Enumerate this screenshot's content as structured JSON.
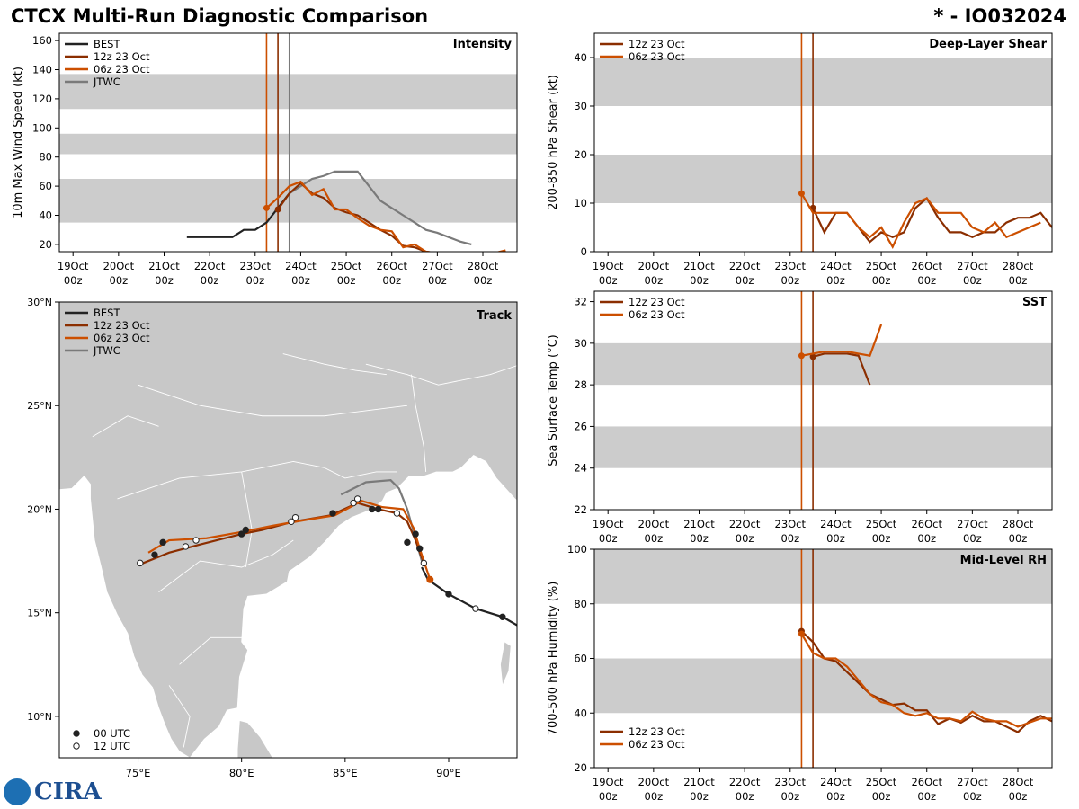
{
  "header": {
    "title": "CTCX Multi-Run Diagnostic Comparison",
    "storm_id": "* - IO032024"
  },
  "logo": {
    "text": "CIRA",
    "noaa": "NOAA"
  },
  "colors": {
    "BEST": "#222222",
    "12z 23 Oct": "#8b2e00",
    "06z 23 Oct": "#cc4f00",
    "JTWC": "#7a7a7a",
    "band": "#cccccc"
  },
  "time_labels": [
    "19Oct\n00z",
    "20Oct\n00z",
    "21Oct\n00z",
    "22Oct\n00z",
    "23Oct\n00z",
    "24Oct\n00z",
    "25Oct\n00z",
    "26Oct\n00z",
    "27Oct\n00z",
    "28Oct\n00z"
  ],
  "chart_data": [
    {
      "id": "intensity",
      "type": "line",
      "title": "Intensity",
      "ylabel": "10m Max Wind Speed (kt)",
      "xlim": [
        -0.3,
        9.75
      ],
      "ylim": [
        15,
        165
      ],
      "yticks": [
        20,
        40,
        60,
        80,
        100,
        120,
        140,
        160
      ],
      "bands": [
        [
          35,
          65
        ],
        [
          82,
          96
        ],
        [
          113,
          137
        ]
      ],
      "vlines": [
        {
          "x": 4.25,
          "series": "06z 23 Oct"
        },
        {
          "x": 4.5,
          "series": "12z 23 Oct"
        },
        {
          "x": 4.75,
          "series": "JTWC"
        }
      ],
      "legend": [
        "BEST",
        "12z 23 Oct",
        "06z 23 Oct",
        "JTWC"
      ],
      "series": [
        {
          "name": "BEST",
          "x": [
            2.5,
            2.75,
            3.0,
            3.25,
            3.5,
            3.75,
            4.0,
            4.25,
            4.5,
            4.75
          ],
          "y": [
            25,
            25,
            25,
            25,
            25,
            30,
            30,
            35,
            45,
            55
          ]
        },
        {
          "name": "JTWC",
          "x": [
            4.75,
            5.0,
            5.25,
            5.5,
            5.75,
            6.0,
            6.25,
            6.5,
            6.75,
            7.0,
            7.25,
            7.5,
            7.75,
            8.0,
            8.25,
            8.5,
            8.75
          ],
          "y": [
            55,
            60,
            65,
            67,
            70,
            70,
            70,
            60,
            50,
            45,
            40,
            35,
            30,
            28,
            25,
            22,
            20
          ]
        },
        {
          "name": "12z 23 Oct",
          "x": [
            4.5,
            4.75,
            5.0,
            5.25,
            5.5,
            5.75,
            6.0,
            6.25,
            6.5,
            6.75,
            7.0,
            7.25,
            7.5,
            7.75,
            8.0,
            8.25,
            8.5,
            8.75,
            9.0,
            9.25,
            9.5
          ],
          "y": [
            44,
            55,
            62,
            55,
            52,
            45,
            42,
            40,
            35,
            30,
            26,
            19,
            18,
            15,
            14,
            13,
            12,
            12,
            12,
            12,
            12
          ]
        },
        {
          "name": "06z 23 Oct",
          "x": [
            4.25,
            4.5,
            4.75,
            5.0,
            5.25,
            5.5,
            5.75,
            6.0,
            6.25,
            6.5,
            6.75,
            7.0,
            7.25,
            7.5,
            7.75,
            8.0,
            8.25,
            8.5,
            8.75,
            9.0,
            9.25,
            9.5
          ],
          "y": [
            45,
            52,
            60,
            63,
            54,
            58,
            44,
            44,
            38,
            33,
            30,
            29,
            18,
            20,
            15,
            14,
            13,
            12,
            12,
            13,
            14,
            16
          ]
        }
      ]
    },
    {
      "id": "shear",
      "type": "line",
      "title": "Deep-Layer Shear",
      "ylabel": "200-850 hPa Shear (kt)",
      "xlim": [
        -0.3,
        9.75
      ],
      "ylim": [
        0,
        45
      ],
      "yticks": [
        0,
        10,
        20,
        30,
        40
      ],
      "bands": [
        [
          10,
          20
        ],
        [
          30,
          40
        ]
      ],
      "vlines": [
        {
          "x": 4.25,
          "series": "06z 23 Oct"
        },
        {
          "x": 4.5,
          "series": "12z 23 Oct"
        }
      ],
      "legend": [
        "12z 23 Oct",
        "06z 23 Oct"
      ],
      "series": [
        {
          "name": "12z 23 Oct",
          "x": [
            4.5,
            4.75,
            5.0,
            5.25,
            5.5,
            5.75,
            6.0,
            6.25,
            6.5,
            6.75,
            7.0,
            7.25,
            7.5,
            7.75,
            8.0,
            8.25,
            8.5,
            8.75,
            9.0,
            9.25,
            9.5,
            9.75
          ],
          "y": [
            9,
            4,
            8,
            8,
            5,
            2,
            4,
            3,
            4,
            9,
            11,
            7,
            4,
            4,
            3,
            4,
            4,
            6,
            7,
            7,
            8,
            5
          ]
        },
        {
          "name": "06z 23 Oct",
          "x": [
            4.25,
            4.5,
            4.75,
            5.0,
            5.25,
            5.5,
            5.75,
            6.0,
            6.25,
            6.5,
            6.75,
            7.0,
            7.25,
            7.5,
            7.75,
            8.0,
            8.25,
            8.5,
            8.75,
            9.0,
            9.25,
            9.5
          ],
          "y": [
            12,
            8,
            8,
            8,
            8,
            5,
            3,
            5,
            1,
            6,
            10,
            11,
            8,
            8,
            8,
            5,
            4,
            6,
            3,
            4,
            5,
            6
          ]
        }
      ]
    },
    {
      "id": "sst",
      "type": "line",
      "title": "SST",
      "ylabel": "Sea Surface Temp (°C)",
      "xlim": [
        -0.3,
        9.75
      ],
      "ylim": [
        22,
        32.5
      ],
      "yticks": [
        22,
        24,
        26,
        28,
        30,
        32
      ],
      "bands": [
        [
          24,
          26
        ],
        [
          28,
          30
        ]
      ],
      "vlines": [
        {
          "x": 4.25,
          "series": "06z 23 Oct"
        },
        {
          "x": 4.5,
          "series": "12z 23 Oct"
        }
      ],
      "legend": [
        "12z 23 Oct",
        "06z 23 Oct"
      ],
      "series": [
        {
          "name": "12z 23 Oct",
          "x": [
            4.5,
            4.75,
            5.0,
            5.25,
            5.5,
            5.75
          ],
          "y": [
            29.35,
            29.5,
            29.5,
            29.5,
            29.4,
            28.0
          ]
        },
        {
          "name": "06z 23 Oct",
          "x": [
            4.25,
            4.5,
            4.75,
            5.0,
            5.25,
            5.5,
            5.75,
            6.0
          ],
          "y": [
            29.4,
            29.5,
            29.6,
            29.6,
            29.6,
            29.5,
            29.4,
            30.9
          ]
        }
      ]
    },
    {
      "id": "rh",
      "type": "line",
      "title": "Mid-Level RH",
      "ylabel": "700-500 hPa Humidity (%)",
      "xlim": [
        -0.3,
        9.75
      ],
      "ylim": [
        20,
        100
      ],
      "yticks": [
        20,
        40,
        60,
        80,
        100
      ],
      "bands": [
        [
          40,
          60
        ],
        [
          80,
          100
        ]
      ],
      "vlines": [
        {
          "x": 4.25,
          "series": "06z 23 Oct"
        },
        {
          "x": 4.5,
          "series": "12z 23 Oct"
        }
      ],
      "legend": [
        "12z 23 Oct",
        "06z 23 Oct"
      ],
      "series": [
        {
          "name": "12z 23 Oct",
          "x": [
            4.25,
            4.5,
            4.75,
            5.0,
            5.25,
            5.5,
            5.75,
            6.0,
            6.25,
            6.5,
            6.75,
            7.0,
            7.25,
            7.5,
            7.75,
            8.0,
            8.25,
            8.5,
            8.75,
            9.0,
            9.25,
            9.5,
            9.75
          ],
          "y": [
            70,
            66,
            60,
            59,
            55,
            51,
            47,
            45,
            43,
            43.5,
            41,
            41,
            36,
            38,
            36.5,
            39,
            37,
            37,
            35,
            33,
            37,
            39,
            37
          ]
        },
        {
          "name": "06z 23 Oct",
          "x": [
            4.25,
            4.5,
            4.75,
            5.0,
            5.25,
            5.5,
            5.75,
            6.0,
            6.25,
            6.5,
            6.75,
            7.0,
            7.25,
            7.5,
            7.75,
            8.0,
            8.25,
            8.5,
            8.75,
            9.0,
            9.25,
            9.5,
            9.75
          ],
          "y": [
            69,
            62,
            60,
            60,
            57,
            52,
            47,
            44,
            43,
            40,
            39,
            40,
            38,
            38,
            37,
            40.5,
            38,
            37,
            37,
            35,
            36.5,
            38,
            38
          ]
        }
      ]
    },
    {
      "id": "track",
      "type": "line",
      "title": "Track",
      "xlim": [
        71.2,
        93.3
      ],
      "ylim": [
        8,
        30
      ],
      "xticks": [
        75,
        80,
        85,
        90
      ],
      "xtick_labels": [
        "75°E",
        "80°E",
        "85°E",
        "90°E"
      ],
      "yticks": [
        10,
        15,
        20,
        25,
        30
      ],
      "ytick_labels": [
        "10°N",
        "15°N",
        "20°N",
        "25°N",
        "30°N"
      ],
      "legend": [
        "BEST",
        "12z 23 Oct",
        "06z 23 Oct",
        "JTWC"
      ],
      "marker_legend": [
        "00 UTC",
        "12 UTC"
      ],
      "series": [
        {
          "name": "BEST",
          "lon": [
            93.3,
            92.6,
            91.3,
            90.0,
            89.0,
            88.7
          ],
          "lat": [
            14.4,
            14.8,
            15.2,
            15.9,
            16.6,
            17.2
          ]
        },
        {
          "name": "JTWC",
          "lon": [
            84.8,
            86.0,
            87.2,
            87.6,
            88.0,
            88.7
          ],
          "lat": [
            20.7,
            21.3,
            21.4,
            21.0,
            20.0,
            17.5
          ]
        },
        {
          "name": "12z 23 Oct",
          "lon": [
            88.8,
            88.4,
            88.0,
            87.5,
            86.6,
            85.6,
            84.3,
            82.5,
            81.0,
            80.0,
            78.0,
            76.5,
            75.0
          ],
          "lat": [
            17.4,
            18.5,
            19.4,
            19.8,
            20.0,
            20.3,
            19.7,
            19.4,
            19.0,
            18.8,
            18.3,
            17.9,
            17.3
          ]
        },
        {
          "name": "06z 23 Oct",
          "lon": [
            89.1,
            88.6,
            88.3,
            87.8,
            86.8,
            85.8,
            84.5,
            83.2,
            81.5,
            80.0,
            78.3,
            76.5,
            75.5
          ],
          "lat": [
            16.6,
            18.1,
            19.1,
            20.0,
            20.1,
            20.4,
            19.7,
            19.5,
            19.2,
            18.9,
            18.6,
            18.5,
            17.9
          ]
        }
      ],
      "markers": [
        {
          "lon": 92.6,
          "lat": 14.8,
          "utc": "00"
        },
        {
          "lon": 91.3,
          "lat": 15.2,
          "utc": "12"
        },
        {
          "lon": 90.0,
          "lat": 15.9,
          "utc": "00"
        },
        {
          "lon": 89.1,
          "lat": 16.6,
          "utc": "00"
        },
        {
          "lon": 88.8,
          "lat": 17.4,
          "utc": "12"
        },
        {
          "lon": 88.6,
          "lat": 18.1,
          "utc": "00"
        },
        {
          "lon": 88.4,
          "lat": 18.8,
          "utc": "00"
        },
        {
          "lon": 88.0,
          "lat": 18.4,
          "utc": "00"
        },
        {
          "lon": 87.5,
          "lat": 19.8,
          "utc": "12"
        },
        {
          "lon": 86.6,
          "lat": 20.0,
          "utc": "00"
        },
        {
          "lon": 86.3,
          "lat": 20.0,
          "utc": "00"
        },
        {
          "lon": 85.6,
          "lat": 20.5,
          "utc": "12"
        },
        {
          "lon": 85.4,
          "lat": 20.3,
          "utc": "12"
        },
        {
          "lon": 84.4,
          "lat": 19.8,
          "utc": "00"
        },
        {
          "lon": 82.6,
          "lat": 19.6,
          "utc": "12"
        },
        {
          "lon": 82.4,
          "lat": 19.4,
          "utc": "12"
        },
        {
          "lon": 80.2,
          "lat": 19.0,
          "utc": "00"
        },
        {
          "lon": 80.0,
          "lat": 18.8,
          "utc": "00"
        },
        {
          "lon": 77.8,
          "lat": 18.5,
          "utc": "12"
        },
        {
          "lon": 77.3,
          "lat": 18.2,
          "utc": "12"
        },
        {
          "lon": 76.2,
          "lat": 18.4,
          "utc": "00"
        },
        {
          "lon": 75.8,
          "lat": 17.8,
          "utc": "00"
        },
        {
          "lon": 75.1,
          "lat": 17.4,
          "utc": "12"
        }
      ]
    }
  ]
}
